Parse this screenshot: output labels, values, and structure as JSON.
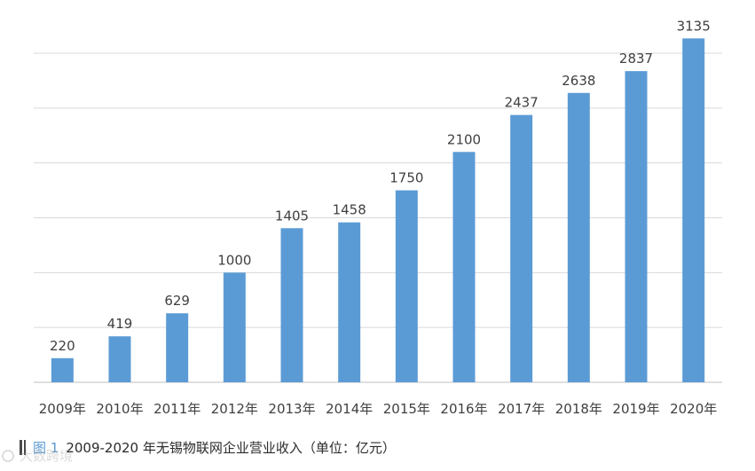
{
  "chart_data": {
    "type": "bar",
    "title": "",
    "xlabel": "",
    "ylabel": "",
    "categories": [
      "2009年",
      "2010年",
      "2011年",
      "2012年",
      "2013年",
      "2014年",
      "2015年",
      "2016年",
      "2017年",
      "2018年",
      "2019年",
      "2020年"
    ],
    "values": [
      220,
      419,
      629,
      1000,
      1405,
      1458,
      1750,
      2100,
      2437,
      2638,
      2837,
      3135
    ],
    "ylim": [
      0,
      3000
    ],
    "yticks": [
      0,
      500,
      1000,
      1500,
      2000,
      2500,
      3000
    ],
    "grid": true,
    "show_y_tick_labels": false,
    "data_labels": true,
    "bar_color": "#5b9bd5",
    "grid_color": "#d9d9d9",
    "label_color": "#404040"
  },
  "caption": {
    "figure_no": "图 1",
    "text": "2009-2020 年无锡物联网企业营业收入（单位：亿元）"
  },
  "watermark": {
    "text": "大数跨境"
  }
}
